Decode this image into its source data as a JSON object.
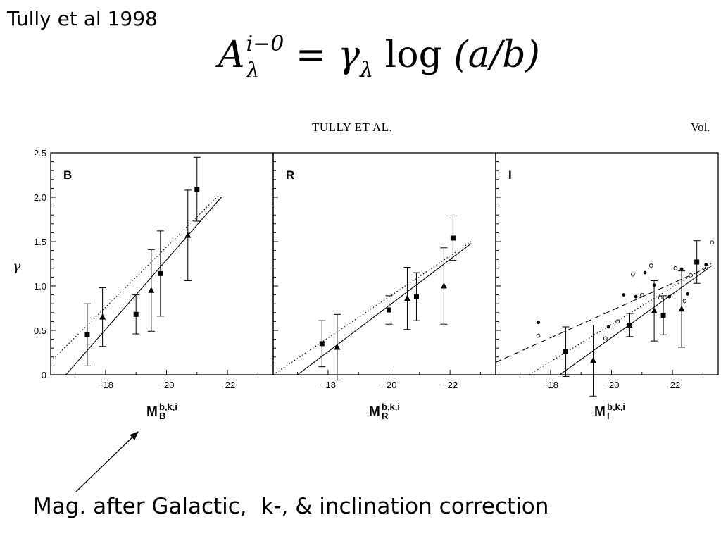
{
  "slide": {
    "title": "Tully et al 1998",
    "caption": "Mag. after Galactic,  k-, & inclination correction"
  },
  "formula": {
    "lhs_symbol": "A",
    "lhs_sup": "i−0",
    "lhs_sub": "λ",
    "equals": "=",
    "gamma": "γ",
    "gamma_sub": "λ",
    "log_text": "log",
    "argument": "(a/b)"
  },
  "journal": {
    "header": "TULLY ET AL.",
    "volume": "Vol."
  },
  "colors": {
    "ink": "#000000",
    "background": "#ffffff"
  },
  "chart_data": [
    {
      "type": "scatter",
      "panel_label": "B",
      "ylabel": "γ",
      "xlabel_main": "M",
      "xlabel_sub": "B",
      "xlabel_sup": "b,k,i",
      "xlim": [
        -16.2,
        -23.5
      ],
      "ylim": [
        0,
        2.5
      ],
      "xticks": [
        -18,
        -20,
        -22
      ],
      "yticks": [
        0,
        0.5,
        1.0,
        1.5,
        2.0,
        2.5
      ],
      "grid": false,
      "series": [
        {
          "marker": "square",
          "x": [
            -17.4,
            -19.0,
            -19.8,
            -21.0
          ],
          "y": [
            0.45,
            0.68,
            1.14,
            2.09
          ],
          "err": [
            0.35,
            0.22,
            0.48,
            0.36
          ]
        },
        {
          "marker": "triangle",
          "x": [
            -17.9,
            -19.5,
            -20.7
          ],
          "y": [
            0.65,
            0.95,
            1.57
          ],
          "err": [
            0.33,
            0.46,
            0.51
          ]
        }
      ],
      "fits": [
        {
          "style": "solid",
          "x": [
            -16.7,
            -21.8
          ],
          "y": [
            0.0,
            2.0
          ]
        },
        {
          "style": "dotted",
          "x": [
            -16.2,
            -21.8
          ],
          "y": [
            0.15,
            2.05
          ]
        }
      ]
    },
    {
      "type": "scatter",
      "panel_label": "R",
      "xlabel_main": "M",
      "xlabel_sub": "R",
      "xlabel_sup": "b,k,i",
      "xlim": [
        -16.2,
        -23.5
      ],
      "ylim": [
        0,
        2.5
      ],
      "xticks": [
        -18,
        -20,
        -22
      ],
      "grid": false,
      "series": [
        {
          "marker": "square",
          "x": [
            -17.8,
            -20.0,
            -20.9,
            -22.1
          ],
          "y": [
            0.35,
            0.73,
            0.88,
            1.54
          ],
          "err": [
            0.26,
            0.16,
            0.27,
            0.25
          ]
        },
        {
          "marker": "triangle",
          "x": [
            -18.3,
            -20.6,
            -21.8
          ],
          "y": [
            0.31,
            0.86,
            1.0
          ],
          "err": [
            0.37,
            0.35,
            0.43
          ]
        }
      ],
      "fits": [
        {
          "style": "solid",
          "x": [
            -17.0,
            -22.7
          ],
          "y": [
            0.0,
            1.48
          ]
        },
        {
          "style": "dotted",
          "x": [
            -16.2,
            -22.7
          ],
          "y": [
            0.0,
            1.5
          ]
        }
      ]
    },
    {
      "type": "scatter",
      "panel_label": "I",
      "xlabel_main": "M",
      "xlabel_sub": "I",
      "xlabel_sup": "b,k,i",
      "xlim": [
        -16.2,
        -23.5
      ],
      "ylim": [
        0,
        2.5
      ],
      "xticks": [
        -18,
        -20,
        -22
      ],
      "grid": false,
      "series": [
        {
          "marker": "square",
          "x": [
            -18.5,
            -20.6,
            -21.7,
            -22.8
          ],
          "y": [
            0.26,
            0.56,
            0.67,
            1.27
          ],
          "err": [
            0.28,
            0.13,
            0.22,
            0.24
          ]
        },
        {
          "marker": "triangle",
          "x": [
            -19.4,
            -21.4,
            -22.3
          ],
          "y": [
            0.16,
            0.72,
            0.74
          ],
          "err": [
            0.4,
            0.34,
            0.43
          ]
        },
        {
          "marker": "filled-dot",
          "x": [
            -17.6,
            -19.9,
            -20.4,
            -20.8,
            -21.1,
            -21.4,
            -21.9,
            -22.3,
            -22.5,
            -23.1
          ],
          "y": [
            0.59,
            0.54,
            0.9,
            0.88,
            1.15,
            1.01,
            0.88,
            1.19,
            0.91,
            1.24
          ],
          "err": []
        },
        {
          "marker": "open-dot",
          "x": [
            -17.6,
            -19.8,
            -20.2,
            -20.7,
            -21.0,
            -21.3,
            -21.6,
            -22.1,
            -22.4,
            -22.6,
            -23.3
          ],
          "y": [
            0.44,
            0.41,
            0.6,
            1.13,
            0.9,
            1.23,
            0.87,
            1.2,
            0.83,
            1.12,
            1.49
          ],
          "err": []
        }
      ],
      "fits": [
        {
          "style": "solid",
          "x": [
            -18.3,
            -23.3
          ],
          "y": [
            0.0,
            1.23
          ]
        },
        {
          "style": "dotted",
          "x": [
            -17.3,
            -23.3
          ],
          "y": [
            0.0,
            1.26
          ]
        },
        {
          "style": "dashed",
          "x": [
            -16.2,
            -23.3
          ],
          "y": [
            0.14,
            1.23
          ]
        }
      ]
    }
  ]
}
